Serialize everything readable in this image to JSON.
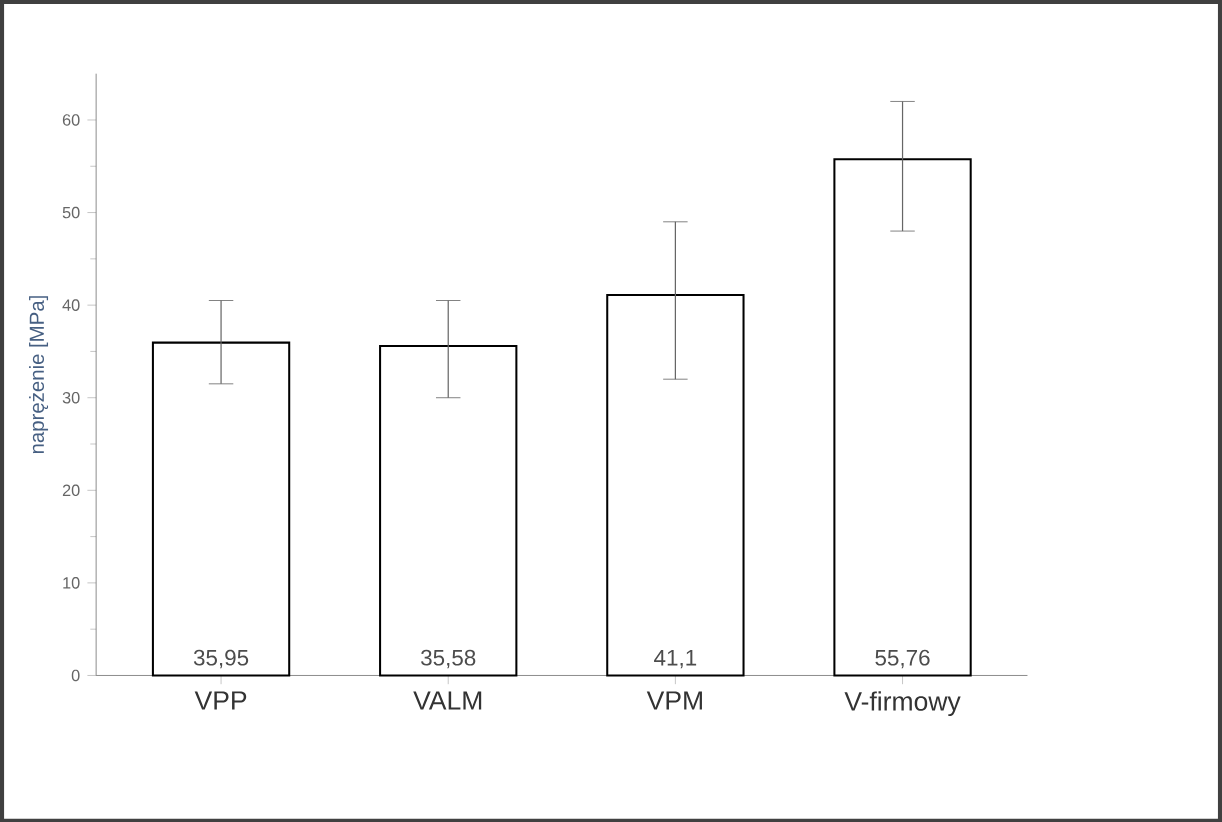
{
  "chart_data": {
    "type": "bar",
    "ylabel": "naprężenie [MPa]",
    "categories": [
      "VPP",
      "VALM",
      "VPM",
      "V-firmowy"
    ],
    "values": [
      35.95,
      35.58,
      41.1,
      55.76
    ],
    "errors": [
      [
        31.5,
        40.5
      ],
      [
        30,
        40.5
      ],
      [
        32,
        49
      ],
      [
        48,
        62
      ]
    ],
    "value_labels": [
      "35,95",
      "35,58",
      "41,1",
      "55,76"
    ],
    "color": "#ffffff",
    "ylim": [
      0,
      65
    ],
    "yticks": [
      0,
      10,
      20,
      30,
      40,
      50,
      60
    ]
  }
}
